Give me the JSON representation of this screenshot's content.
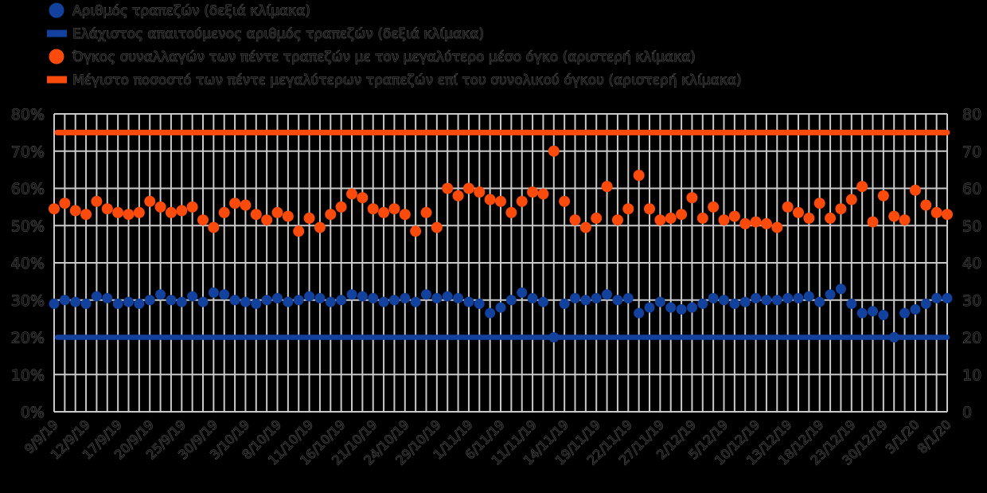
{
  "chart_data": {
    "type": "scatter",
    "title": "",
    "background": "#000000",
    "grid": true,
    "grid_color": "#c9c9c9",
    "text_color_effect": "dark-outlined-ghost-text",
    "legend_position": "top-left",
    "n_points": 85,
    "tick_every": 3,
    "left_axis": {
      "label": "",
      "unit": "%",
      "min": 0,
      "max": 80,
      "ticks": [
        "80%",
        "70%",
        "60%",
        "50%",
        "40%",
        "30%",
        "20%",
        "10%",
        "0%"
      ]
    },
    "right_axis": {
      "label": "",
      "unit": "",
      "min": 0,
      "max": 80,
      "ticks": [
        "80",
        "70",
        "60",
        "50",
        "40",
        "30",
        "20",
        "10",
        "0"
      ]
    },
    "x_tick_labels": [
      "9/9/19",
      "12/9/19",
      "17/9/19",
      "20/9/19",
      "25/9/19",
      "30/9/19",
      "3/10/19",
      "8/10/19",
      "11/10/19",
      "16/10/19",
      "21/10/19",
      "24/10/19",
      "29/10/19",
      "1/11/19",
      "6/11/19",
      "11/11/19",
      "14/11/19",
      "19/11/19",
      "22/11/19",
      "27/11/19",
      "2/12/19",
      "5/12/19",
      "10/12/19",
      "13/12/19",
      "18/12/19",
      "23/12/19",
      "30/12/19",
      "3/1/20",
      "8/1/20"
    ],
    "colors": {
      "blue": "#12419e",
      "orange": "#fa4b0d"
    },
    "series": [
      {
        "name": "Αριθμός τραπεζών (δεξιά κλίμακα)",
        "type": "scatter",
        "marker": "circle",
        "axis": "right",
        "color": "#12419e",
        "values": [
          29,
          30,
          29.5,
          29,
          31,
          30.5,
          29,
          29.5,
          29,
          30,
          31.5,
          30,
          29.5,
          31,
          29.5,
          32,
          31.5,
          30,
          29.5,
          29,
          30,
          30.5,
          29.5,
          30,
          31,
          30.5,
          29.5,
          30,
          31.5,
          31,
          30.5,
          29.5,
          30,
          30.5,
          29.5,
          31.5,
          30.5,
          31,
          30.5,
          29.5,
          29,
          26.5,
          28,
          30,
          32,
          30.5,
          29.5,
          20,
          29,
          30.5,
          30,
          30.5,
          31.5,
          30,
          30.5,
          26.5,
          28,
          29.5,
          28,
          27.5,
          28,
          29,
          30.5,
          30,
          29,
          29.5,
          30.5,
          30,
          30,
          30.5,
          30.5,
          31,
          29.5,
          31.5,
          33,
          29,
          26.5,
          27,
          26,
          20,
          26.5,
          27.5,
          29,
          30.5,
          30.5
        ]
      },
      {
        "name": "Ελάχιστος απαιτούμενος αριθμός τραπεζών (δεξιά κλίμακα)",
        "type": "hline",
        "marker": "thick-line",
        "axis": "right",
        "color": "#12419e",
        "value": 20
      },
      {
        "name": "Όγκος συναλλαγών των πέντε τραπεζών με τον μεγαλύτερο μέσο όγκο (αριστερή κλίμακα)",
        "type": "scatter",
        "marker": "circle",
        "axis": "left",
        "color": "#fa4b0d",
        "values": [
          54.5,
          56,
          54,
          53,
          56.5,
          54.5,
          53.5,
          53,
          53.5,
          56.5,
          55,
          53.5,
          54,
          55,
          51.5,
          49.5,
          53.5,
          56,
          55.5,
          53,
          51.5,
          53.5,
          52.5,
          48.5,
          52,
          49.5,
          53,
          55,
          58.5,
          57.5,
          54.5,
          53.5,
          54.5,
          53,
          48.5,
          53.5,
          49.5,
          60,
          58,
          60,
          59,
          57,
          56.5,
          53.5,
          56.5,
          59,
          58.5,
          70,
          56.5,
          51.5,
          49.5,
          52,
          60.5,
          51.5,
          54.5,
          63.5,
          54.5,
          51.5,
          52,
          53,
          57.5,
          52,
          55,
          51.5,
          52.5,
          50.5,
          51,
          50.5,
          49.5,
          55,
          53.5,
          52,
          56,
          52,
          54.5,
          57,
          60.5,
          51,
          58,
          52.5,
          51.5,
          59.5,
          55.5,
          53.5,
          53
        ]
      },
      {
        "name": "Μέγιστο ποσοστό των πέντε μεγαλύτερων τραπεζών επί του συνολικού όγκου (αριστερή κλίμακα)",
        "type": "hline",
        "marker": "thick-line",
        "axis": "left",
        "color": "#fa4b0d",
        "value": 75
      }
    ]
  }
}
